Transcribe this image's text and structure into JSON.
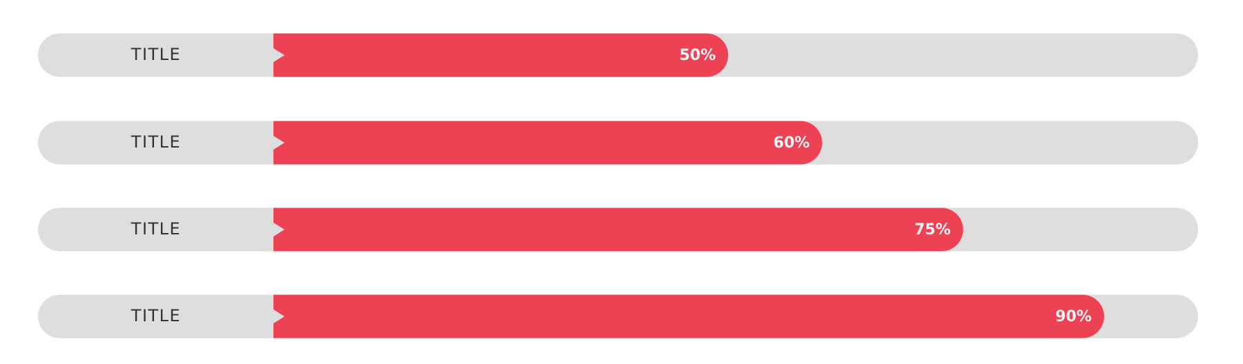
{
  "chart_data": {
    "type": "bar",
    "orientation": "horizontal",
    "categories": [
      "TITLE",
      "TITLE",
      "TITLE",
      "TITLE"
    ],
    "values": [
      50,
      60,
      75,
      90
    ],
    "value_labels": [
      "50%",
      "60%",
      "75%",
      "90%"
    ],
    "xlim": [
      0,
      100
    ],
    "color": "#ec4254",
    "track_color": "#dedede"
  }
}
